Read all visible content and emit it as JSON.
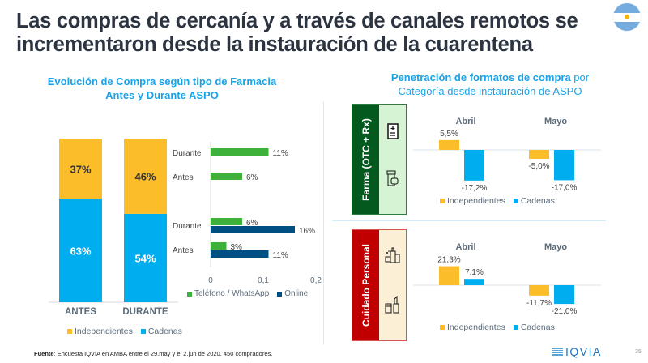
{
  "header": {
    "title": "Las compras de cercanía y a través de canales remotos se incrementaron desde la instauración de la cuarentena",
    "flag_icon": "argentina-flag-icon"
  },
  "left": {
    "subtitle_line1": "Evolución de Compra según tipo de Farmacia",
    "subtitle_line2": "Antes y Durante ASPO"
  },
  "right": {
    "subtitle_bold": "Penetración de formatos de compra",
    "subtitle_rest": " por",
    "subtitle_line2": "Categoría desde instauración de ASPO"
  },
  "colors": {
    "independientes": "#fbbd2a",
    "cadenas": "#00adef",
    "telefono": "#3db139",
    "online": "#004f83",
    "farma_dark": "#04591f",
    "farma_light": "#d6f3d3",
    "cuidado_dark": "#c00000",
    "cuidado_light": "#fbf0d6"
  },
  "chart_data": [
    {
      "id": "stacked",
      "type": "bar",
      "stacked": true,
      "categories": [
        "ANTES",
        "DURANTE"
      ],
      "series": [
        {
          "name": "Cadenas",
          "values": [
            63,
            54
          ],
          "labels": [
            "63%",
            "54%"
          ]
        },
        {
          "name": "Independientes",
          "values": [
            37,
            46
          ],
          "labels": [
            "37%",
            "46%"
          ]
        }
      ],
      "ylim": [
        0,
        100
      ],
      "legend": [
        "Independientes",
        "Cadenas"
      ],
      "legend_position": "bottom"
    },
    {
      "id": "channels",
      "type": "bar",
      "orientation": "horizontal",
      "groups": [
        {
          "group": "Independientes",
          "rows": [
            {
              "label": "Durante",
              "telefono": 0.11,
              "telefono_label": "11%",
              "online": null
            },
            {
              "label": "Antes",
              "telefono": 0.06,
              "telefono_label": "6%",
              "online": null
            }
          ]
        },
        {
          "group": "Cadenas",
          "rows": [
            {
              "label": "Durante",
              "telefono": 0.06,
              "telefono_label": "6%",
              "online": 0.16,
              "online_label": "16%"
            },
            {
              "label": "Antes",
              "telefono": 0.03,
              "telefono_label": "3%",
              "online": 0.11,
              "online_label": "11%"
            }
          ]
        }
      ],
      "xlim": [
        0,
        0.2
      ],
      "xticks": [
        "0",
        "0,1",
        "0,2"
      ],
      "legend": [
        "Teléfono / WhatsApp",
        "Online"
      ],
      "legend_position": "bottom"
    },
    {
      "id": "farma",
      "type": "bar",
      "category_label": "Farma (OTC + Rx)",
      "categories": [
        "Abril",
        "Mayo"
      ],
      "series": [
        {
          "name": "Independientes",
          "values": [
            5.5,
            -5.0
          ],
          "labels": [
            "5,5%",
            "-5,0%"
          ]
        },
        {
          "name": "Cadenas",
          "values": [
            -17.2,
            -17.0
          ],
          "labels": [
            "-17,2%",
            "-17,0%"
          ]
        }
      ],
      "legend": [
        "Independientes",
        "Cadenas"
      ],
      "legend_position": "bottom"
    },
    {
      "id": "cuidado",
      "type": "bar",
      "category_label": "Cuidado Personal",
      "categories": [
        "Abril",
        "Mayo"
      ],
      "series": [
        {
          "name": "Independientes",
          "values": [
            21.3,
            -11.7
          ],
          "labels": [
            "21,3%",
            "-11,7%"
          ]
        },
        {
          "name": "Cadenas",
          "values": [
            7.1,
            -21.0
          ],
          "labels": [
            "7,1%",
            "-21,0%"
          ]
        }
      ],
      "legend": [
        "Independientes",
        "Cadenas"
      ],
      "legend_position": "bottom"
    }
  ],
  "legends": {
    "independientes": "Independientes",
    "cadenas": "Cadenas",
    "telefono": "Teléfono / WhatsApp",
    "online": "Online"
  },
  "footer": {
    "source_label": "Fuente",
    "source_text": ": Encuesta IQVIA en AMBA entre el 29.may y el 2.jun de 2020. 450 compradores.",
    "logo": "IQVIA",
    "page_number": "35"
  }
}
